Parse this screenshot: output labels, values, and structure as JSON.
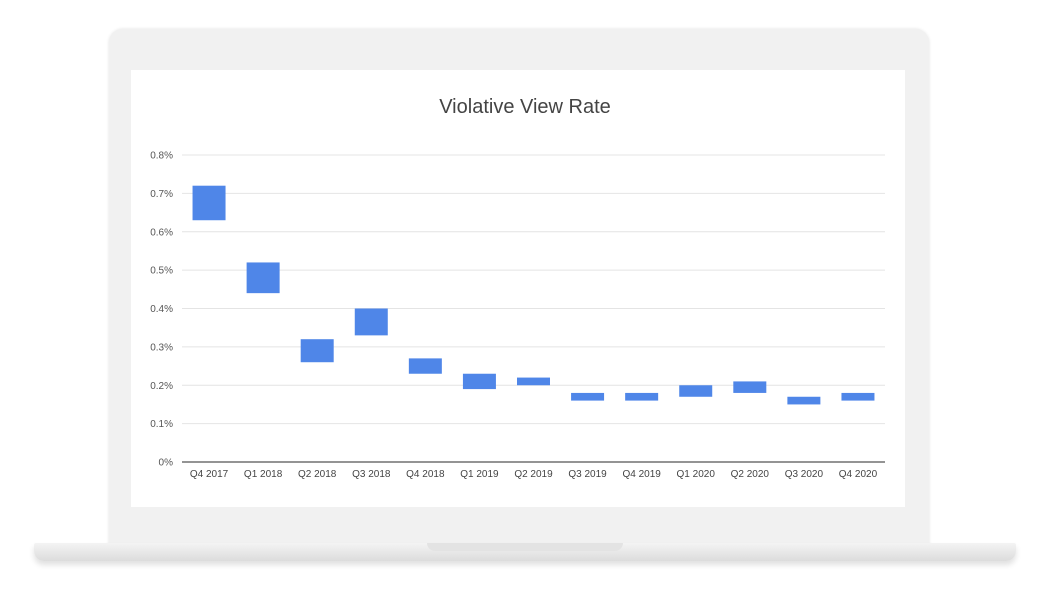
{
  "chart_data": {
    "type": "candlestick-range",
    "title": "Violative View Rate",
    "xlabel": "",
    "ylabel": "",
    "ylim": [
      0,
      0.8
    ],
    "yticks": [
      "0%",
      "0.1%",
      "0.2%",
      "0.3%",
      "0.4%",
      "0.5%",
      "0.6%",
      "0.7%",
      "0.8%"
    ],
    "categories": [
      "Q4 2017",
      "Q1 2018",
      "Q2 2018",
      "Q3 2018",
      "Q4 2018",
      "Q1 2019",
      "Q2 2019",
      "Q3 2019",
      "Q4 2019",
      "Q1 2020",
      "Q2 2020",
      "Q3 2020",
      "Q4 2020"
    ],
    "low": [
      0.63,
      0.44,
      0.26,
      0.33,
      0.23,
      0.19,
      0.2,
      0.16,
      0.16,
      0.17,
      0.18,
      0.15,
      0.16
    ],
    "high": [
      0.72,
      0.52,
      0.32,
      0.4,
      0.27,
      0.23,
      0.22,
      0.18,
      0.18,
      0.2,
      0.21,
      0.17,
      0.18
    ],
    "grid": true,
    "color": "#4f86e8"
  }
}
